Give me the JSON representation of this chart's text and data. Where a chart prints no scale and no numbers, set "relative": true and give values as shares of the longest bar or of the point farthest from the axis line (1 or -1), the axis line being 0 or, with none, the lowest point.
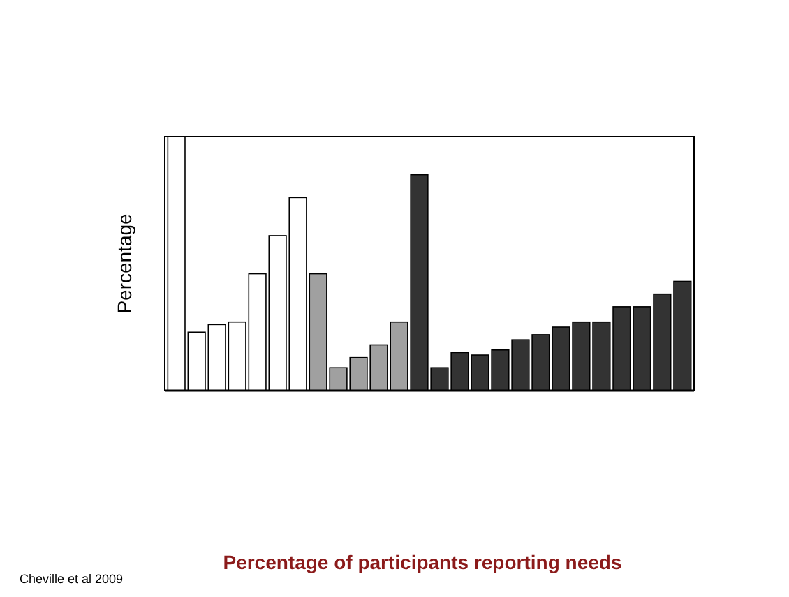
{
  "chart_data": {
    "type": "bar",
    "title": "Percentage of participants reporting needs",
    "ylabel": "Percentage",
    "relative": true,
    "categories": [
      null,
      null,
      null,
      null,
      null,
      null,
      null,
      null,
      null,
      null,
      null,
      null,
      null,
      null,
      null,
      null,
      null,
      null,
      null,
      null,
      null,
      null,
      null,
      null,
      null,
      null
    ],
    "values": [
      1,
      0.23,
      0.26,
      0.27,
      0.46,
      0.61,
      0.76,
      0.46,
      0.09,
      0.13,
      0.18,
      0.27,
      0.85,
      0.09,
      0.15,
      0.14,
      0.16,
      0.2,
      0.22,
      0.25,
      0.27,
      0.27,
      0.33,
      0.33,
      0.38,
      0.43
    ],
    "colors": [
      "#ffffff",
      "#ffffff",
      "#ffffff",
      "#ffffff",
      "#ffffff",
      "#ffffff",
      "#ffffff",
      "#a0a0a0",
      "#a0a0a0",
      "#a0a0a0",
      "#a0a0a0",
      "#a0a0a0",
      "#333333",
      "#333333",
      "#333333",
      "#333333",
      "#333333",
      "#333333",
      "#333333",
      "#333333",
      "#333333",
      "#333333",
      "#333333",
      "#333333",
      "#333333",
      "#333333"
    ],
    "annotations": [
      "Cheville et al 2009"
    ]
  }
}
